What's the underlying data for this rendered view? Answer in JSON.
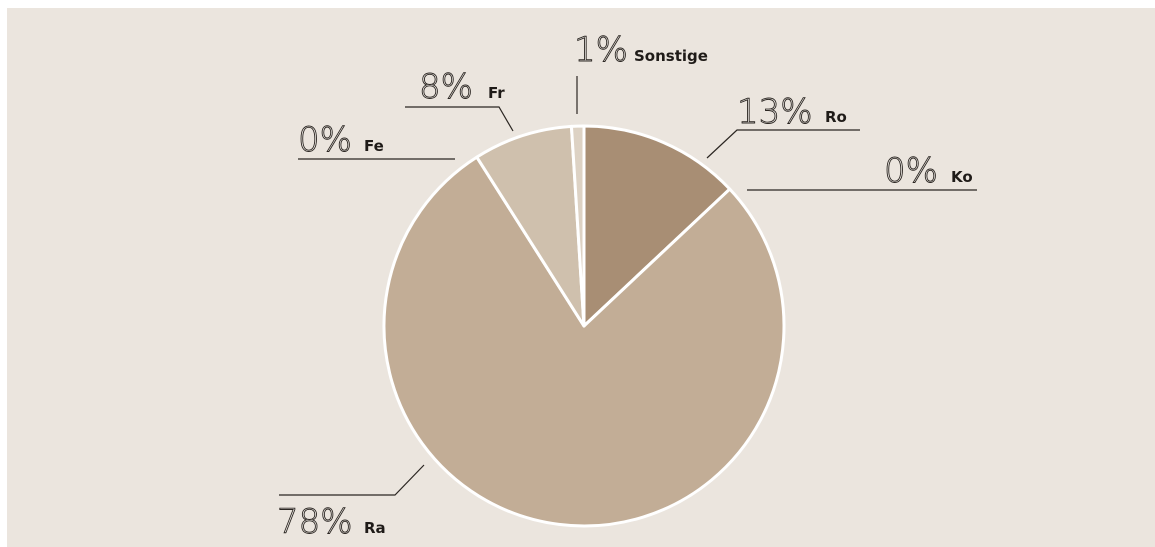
{
  "chart_data": {
    "type": "pie",
    "title": "",
    "slices": [
      {
        "label": "Ro",
        "value": 13,
        "pct_text": "13%",
        "color": "#a88e74"
      },
      {
        "label": "Ko",
        "value": 0,
        "pct_text": "0%",
        "color": "#c2ad96"
      },
      {
        "label": "Ra",
        "value": 78,
        "pct_text": "78%",
        "color": "#c2ad96"
      },
      {
        "label": "Fe",
        "value": 0,
        "pct_text": "0%",
        "color": "#c2ad96"
      },
      {
        "label": "Fr",
        "value": 8,
        "pct_text": "8%",
        "color": "#cfc0ad"
      },
      {
        "label": "Sonstige",
        "value": 1,
        "pct_text": "1%",
        "color": "#ddd2c4"
      }
    ],
    "background": "#ebe5de",
    "separator_color": "#ffffff"
  }
}
